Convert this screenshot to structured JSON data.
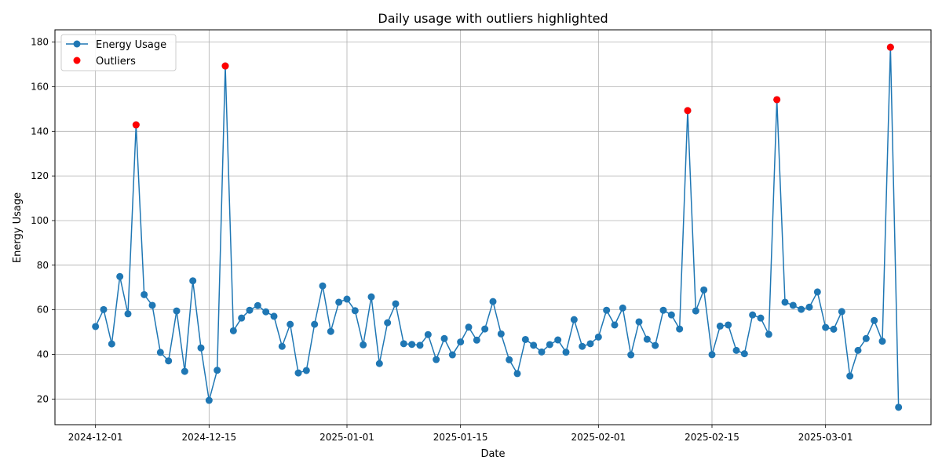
{
  "chart_data": {
    "type": "line",
    "title": "Daily usage with outliers highlighted",
    "xlabel": "Date",
    "ylabel": "Energy Usage",
    "start_date": "2024-12-01",
    "xticks": [
      "2024-12-01",
      "2024-12-15",
      "2025-01-01",
      "2025-01-15",
      "2025-02-01",
      "2025-02-15",
      "2025-03-01"
    ],
    "yticks": [
      20,
      40,
      60,
      80,
      100,
      120,
      140,
      160,
      180
    ],
    "ylim": [
      8.5,
      185.5
    ],
    "xlim": [
      "2024-11-26",
      "2025-03-14"
    ],
    "grid": true,
    "legend_position": "top-left",
    "colors": {
      "line": "#1f77b4",
      "outlier": "#ff0000"
    },
    "series": [
      {
        "name": "Energy Usage",
        "x_start": "2024-12-01",
        "values": [
          52.5,
          60.1,
          44.7,
          74.9,
          58.2,
          142.9,
          66.8,
          62.0,
          40.9,
          37.1,
          59.5,
          32.4,
          73.0,
          42.9,
          19.4,
          32.9,
          169.3,
          50.6,
          56.3,
          59.8,
          61.9,
          59.1,
          57.1,
          43.6,
          53.5,
          31.7,
          32.8,
          53.5,
          70.7,
          50.3,
          63.4,
          64.8,
          59.6,
          44.3,
          65.8,
          35.9,
          54.2,
          62.7,
          44.8,
          44.5,
          44.1,
          48.9,
          37.7,
          47.1,
          39.8,
          45.6,
          52.2,
          46.4,
          51.4,
          63.7,
          49.2,
          37.6,
          31.4,
          46.7,
          44.1,
          41.1,
          44.4,
          46.5,
          41.0,
          55.6,
          43.6,
          44.8,
          47.8,
          59.8,
          53.2,
          60.8,
          39.8,
          54.6,
          46.8,
          44.0,
          59.8,
          57.7,
          51.4,
          149.3,
          59.5,
          68.9,
          39.9,
          52.7,
          53.2,
          41.8,
          40.3,
          57.7,
          56.3,
          49.0,
          154.2,
          63.4,
          62.0,
          60.2,
          61.2,
          68.0,
          52.1,
          51.3,
          59.2,
          30.3,
          41.8,
          47.1,
          55.2,
          45.9,
          177.7,
          16.3
        ]
      },
      {
        "name": "Outliers",
        "points": [
          {
            "date": "2024-12-06",
            "value": 142.9
          },
          {
            "date": "2024-12-17",
            "value": 169.3
          },
          {
            "date": "2025-02-12",
            "value": 149.3
          },
          {
            "date": "2025-02-23",
            "value": 154.2
          },
          {
            "date": "2025-03-09",
            "value": 177.7
          }
        ]
      }
    ]
  }
}
